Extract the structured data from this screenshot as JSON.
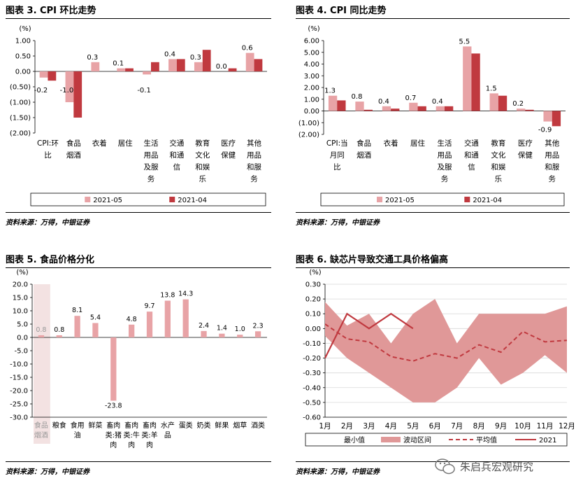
{
  "panels": {
    "p3": {
      "title": "图表 3. CPI 环比走势",
      "source": "资料来源：万得，中银证券"
    },
    "p4": {
      "title": "图表 4. CPI 同比走势",
      "source": "资料来源：万得，中银证券"
    },
    "p5": {
      "title": "图表 5. 食品价格分化",
      "source": "资料来源：万得，中银证券"
    },
    "p6": {
      "title": "图表 6. 缺芯片导致交通工具价格偏高",
      "source": "资料来源：万得，中银证券"
    }
  },
  "watermark": "朱启兵宏观研究",
  "colors": {
    "light": "#e8a3a6",
    "dark": "#c0393f",
    "band": "#e09898",
    "highlight": "#f3e2e2"
  },
  "chart_data": [
    {
      "id": "p3",
      "type": "bar",
      "ylabel": "(%)",
      "ylim": [
        -2.0,
        1.0
      ],
      "yticks": [
        "1.00",
        "0.50",
        "0.00",
        "(0.50)",
        "(1.00)",
        "(1.50)",
        "(2.00)"
      ],
      "yticks_values": [
        1.0,
        0.5,
        0.0,
        -0.5,
        -1.0,
        -1.5,
        -2.0
      ],
      "categories": [
        [
          "CPI:环",
          "比"
        ],
        [
          "食品",
          "烟酒"
        ],
        [
          "衣着"
        ],
        [
          "居住"
        ],
        [
          "生活",
          "用品",
          "及服",
          "务"
        ],
        [
          "交通",
          "和通",
          "信"
        ],
        [
          "教育",
          "文化",
          "和娱",
          "乐"
        ],
        [
          "医疗",
          "保健"
        ],
        [
          "其他",
          "用品",
          "和服",
          "务"
        ]
      ],
      "series": [
        {
          "name": "2021-05",
          "color": "light",
          "values": [
            -0.2,
            -1.0,
            0.3,
            0.1,
            -0.1,
            0.4,
            0.3,
            0.0,
            0.6
          ],
          "labels": [
            "-0.2",
            "-1.0",
            "0.3",
            "0.1",
            "-0.1",
            "0.4",
            "0.3",
            "0.0",
            "0.6"
          ]
        },
        {
          "name": "2021-04",
          "color": "dark",
          "values": [
            -0.3,
            -1.5,
            0.0,
            0.1,
            0.3,
            0.4,
            0.7,
            0.1,
            0.4
          ]
        }
      ],
      "legend": "bottom"
    },
    {
      "id": "p4",
      "type": "bar",
      "ylabel": "(%)",
      "ylim": [
        -2.0,
        6.0
      ],
      "yticks": [
        "6.00",
        "5.00",
        "4.00",
        "3.00",
        "2.00",
        "1.00",
        "0.00",
        "(1.00)",
        "(2.00)"
      ],
      "yticks_values": [
        6,
        5,
        4,
        3,
        2,
        1,
        0,
        -1,
        -2
      ],
      "categories": [
        [
          "CPI:当",
          "月同",
          "比"
        ],
        [
          "食品",
          "烟酒"
        ],
        [
          "衣着"
        ],
        [
          "居住"
        ],
        [
          "生活",
          "用品",
          "及服",
          "务"
        ],
        [
          "交通",
          "和通",
          "信"
        ],
        [
          "教育",
          "文化",
          "和娱",
          "乐"
        ],
        [
          "医疗",
          "保健"
        ],
        [
          "其他",
          "用品",
          "和服",
          "务"
        ]
      ],
      "series": [
        {
          "name": "2021-05",
          "color": "light",
          "values": [
            1.3,
            0.8,
            0.4,
            0.7,
            0.4,
            5.5,
            1.5,
            0.2,
            -0.9
          ],
          "labels": [
            "1.3",
            "0.8",
            "0.4",
            "0.7",
            "0.4",
            "5.5",
            "1.5",
            "0.2",
            "-0.9"
          ]
        },
        {
          "name": "2021-04",
          "color": "dark",
          "values": [
            0.9,
            0.1,
            0.2,
            0.4,
            0.4,
            4.9,
            1.3,
            0.1,
            -1.3
          ]
        }
      ],
      "legend": "bottom"
    },
    {
      "id": "p5",
      "type": "bar",
      "ylabel": "(%)",
      "ylim": [
        -30.0,
        20.0
      ],
      "yticks": [
        "20.0",
        "15.0",
        "10.0",
        "5.0",
        "0.0",
        "-5.0",
        "-10.0",
        "-15.0",
        "-20.0",
        "-25.0",
        "-30.0"
      ],
      "yticks_values": [
        20,
        15,
        10,
        5,
        0,
        -5,
        -10,
        -15,
        -20,
        -25,
        -30
      ],
      "categories": [
        [
          "食品",
          "烟酒"
        ],
        [
          "粮食"
        ],
        [
          "食用",
          "油"
        ],
        [
          "鲜菜"
        ],
        [
          "畜肉",
          "类:猪",
          "肉"
        ],
        [
          "畜肉",
          "类:牛",
          "肉"
        ],
        [
          "畜肉",
          "类:羊",
          "肉"
        ],
        [
          "水产",
          "品"
        ],
        [
          "蛋类"
        ],
        [
          "奶类"
        ],
        [
          "鲜果"
        ],
        [
          "烟草"
        ],
        [
          "酒类"
        ]
      ],
      "values": [
        0.8,
        0.8,
        8.1,
        5.4,
        -23.8,
        4.8,
        9.7,
        13.8,
        14.3,
        2.4,
        1.4,
        1.0,
        2.3
      ],
      "labels": [
        "0.8",
        "0.8",
        "8.1",
        "5.4",
        "-23.8",
        "4.8",
        "9.7",
        "13.8",
        "14.3",
        "2.4",
        "1.4",
        "1.0",
        "2.3"
      ],
      "highlight_index": 0,
      "color": "light"
    },
    {
      "id": "p6",
      "type": "area",
      "ylabel": "(%)",
      "ylim": [
        -0.6,
        0.3
      ],
      "yticks": [
        "0.30",
        "0.20",
        "0.10",
        "0.00",
        "-0.10",
        "-0.20",
        "-0.30",
        "-0.40",
        "-0.50",
        "-0.60"
      ],
      "yticks_values": [
        0.3,
        0.2,
        0.1,
        0.0,
        -0.1,
        -0.2,
        -0.3,
        -0.4,
        -0.5,
        -0.6
      ],
      "categories": [
        "1月",
        "2月",
        "3月",
        "4月",
        "5月",
        "6月",
        "7月",
        "8月",
        "9月",
        "10月",
        "11月",
        "12月"
      ],
      "band_max": [
        0.18,
        0.02,
        0.1,
        -0.1,
        0.1,
        0.2,
        -0.1,
        0.1,
        0.1,
        0.1,
        0.1,
        0.15
      ],
      "band_min": [
        -0.05,
        -0.2,
        -0.3,
        -0.4,
        -0.5,
        -0.5,
        -0.4,
        -0.2,
        -0.38,
        -0.3,
        -0.18,
        -0.3
      ],
      "mean": [
        0.03,
        -0.07,
        -0.09,
        -0.19,
        -0.22,
        -0.17,
        -0.2,
        -0.11,
        -0.16,
        -0.02,
        -0.09,
        -0.08
      ],
      "line_2021": [
        -0.2,
        0.1,
        0.0,
        0.1,
        0.0
      ],
      "legend": [
        "最小值",
        "波动区间",
        "平均值",
        "2021"
      ],
      "grid": true
    }
  ]
}
